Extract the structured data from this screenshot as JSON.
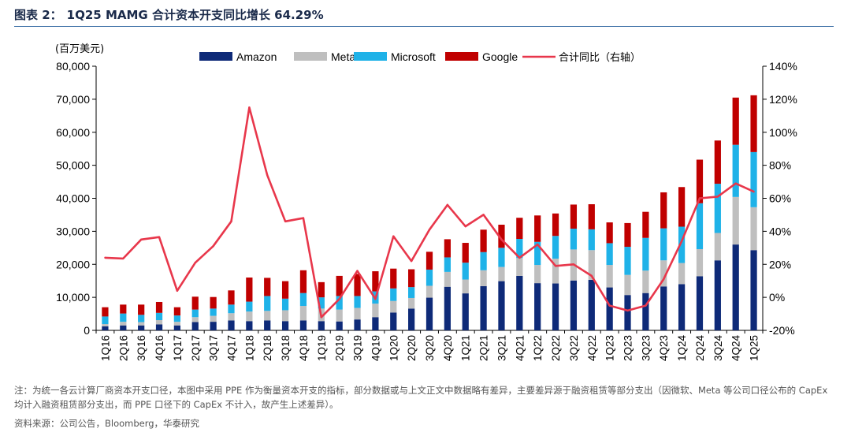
{
  "title": {
    "label": "图表 2：",
    "text": "1Q25 MAMG 合计资本开支同比增长 64.29%"
  },
  "note": "注：为统一各云计算厂商资本开支口径，本图中采用 PPE 作为衡量资本开支的指标，部分数据或与上文正文中数据略有差异，主要差异源于融资租赁等部分支出（因微软、Meta 等公司口径公布的 CapEx 均计入融资租赁部分支出，而 PPE 口径下的 CapEx 不计入，故产生上述差异）。",
  "source": "资料来源：公司公告，Bloomberg，华泰研究",
  "chart_data": {
    "type": "bar",
    "stacked": true,
    "left_unit": "(百万美元)",
    "categories": [
      "1Q16",
      "2Q16",
      "3Q16",
      "4Q16",
      "1Q17",
      "2Q17",
      "3Q17",
      "4Q17",
      "1Q18",
      "2Q18",
      "3Q18",
      "4Q18",
      "1Q19",
      "2Q19",
      "3Q19",
      "4Q19",
      "1Q20",
      "2Q20",
      "3Q20",
      "4Q20",
      "1Q21",
      "2Q21",
      "3Q21",
      "4Q21",
      "1Q22",
      "2Q22",
      "3Q22",
      "4Q22",
      "1Q23",
      "2Q23",
      "3Q23",
      "4Q23",
      "1Q24",
      "2Q24",
      "3Q24",
      "4Q24",
      "1Q25"
    ],
    "ylim": [
      0,
      80000
    ],
    "yticks": [
      "0",
      "10,000",
      "20,000",
      "30,000",
      "40,000",
      "50,000",
      "60,000",
      "70,000",
      "80,000"
    ],
    "y2lim": [
      -20,
      140
    ],
    "y2ticks": [
      "-20%",
      "0%",
      "20%",
      "40%",
      "60%",
      "80%",
      "100%",
      "120%",
      "140%"
    ],
    "series": [
      {
        "name": "Amazon",
        "color": "#0e2a78",
        "values": [
          1200,
          1500,
          1500,
          1800,
          1500,
          2500,
          2600,
          3000,
          2800,
          3000,
          2800,
          3000,
          2800,
          2700,
          3300,
          4000,
          5400,
          6600,
          9900,
          13200,
          11200,
          13400,
          14900,
          16500,
          14300,
          14200,
          15100,
          15300,
          13000,
          10700,
          11300,
          13300,
          14000,
          16400,
          21200,
          26000,
          24300
        ]
      },
      {
        "name": "Meta",
        "color": "#bfbfbf",
        "values": [
          700,
          1100,
          1000,
          1300,
          1100,
          1500,
          1800,
          2200,
          2900,
          2900,
          3300,
          4400,
          3800,
          3600,
          3500,
          4100,
          3500,
          3200,
          3600,
          4500,
          4200,
          4800,
          4300,
          5400,
          5500,
          7500,
          9400,
          9000,
          6800,
          6100,
          6800,
          7900,
          6400,
          8200,
          8300,
          14400,
          13000
        ]
      },
      {
        "name": "Microsoft",
        "color": "#1fb2e8",
        "values": [
          2300,
          2500,
          2200,
          2200,
          1900,
          2300,
          2200,
          2600,
          3000,
          4500,
          3500,
          3900,
          3400,
          4100,
          3600,
          3700,
          3800,
          3300,
          4900,
          4400,
          5100,
          5500,
          5800,
          5800,
          7000,
          6900,
          6300,
          6300,
          6600,
          8500,
          9900,
          9700,
          11000,
          13900,
          14900,
          15800,
          16700
        ]
      },
      {
        "name": "Google",
        "color": "#c00000",
        "values": [
          2800,
          2700,
          3100,
          3300,
          2500,
          3900,
          3500,
          4300,
          7300,
          5500,
          5300,
          6900,
          4600,
          6100,
          6700,
          6100,
          6000,
          5400,
          5400,
          5500,
          6000,
          6800,
          7000,
          6400,
          8000,
          6800,
          7300,
          7600,
          6300,
          7200,
          7900,
          10900,
          12000,
          13200,
          13100,
          14300,
          17200
        ]
      }
    ],
    "line": {
      "name": "合计同比（右轴）",
      "color": "#e8374b",
      "values": [
        24,
        23.5,
        35,
        36.5,
        4,
        21,
        31,
        46,
        115,
        74,
        46,
        48,
        -12,
        -1,
        16,
        -1,
        37,
        22,
        41,
        56,
        43,
        50,
        35,
        24,
        32,
        19,
        20,
        13,
        -5,
        -8,
        -5,
        11,
        34,
        60,
        61,
        69,
        64
      ]
    }
  }
}
